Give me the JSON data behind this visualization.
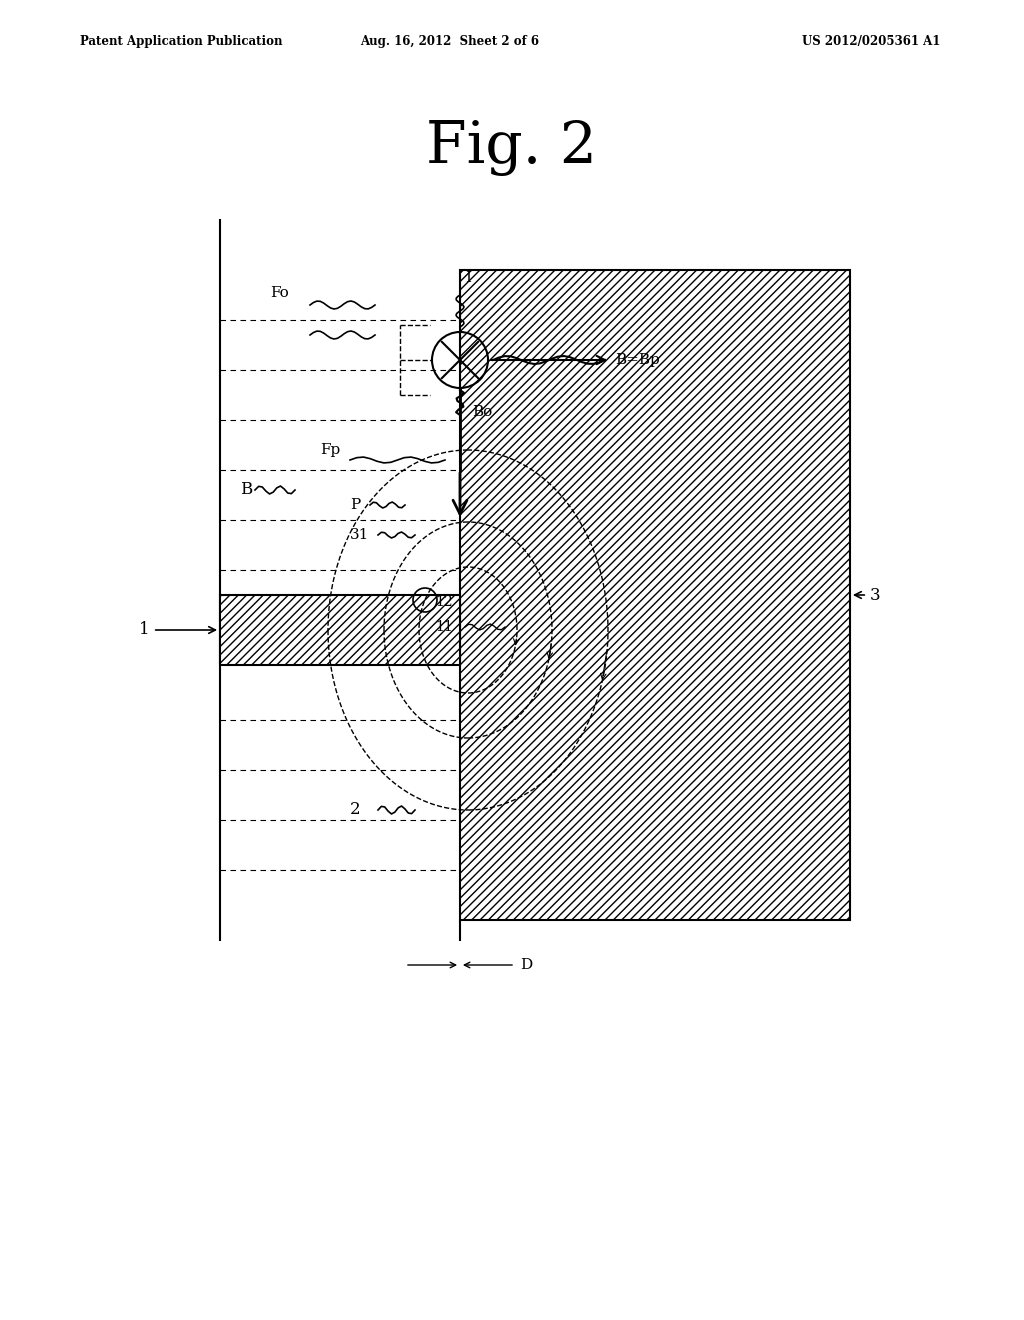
{
  "bg_color": "#ffffff",
  "header_left": "Patent Application Publication",
  "header_center": "Aug. 16, 2012  Sheet 2 of 6",
  "header_right": "US 2012/0205361 A1",
  "fig_title": "Fig. 2",
  "label_1": "1",
  "label_2": "2",
  "label_3": "3",
  "label_11": "11",
  "label_12": "12",
  "label_31": "31",
  "label_B": "B",
  "label_Fo": "Fo",
  "label_I": "I",
  "label_Bp": "B=Bp",
  "label_Bo": "Bo",
  "label_Fp": "Fp",
  "label_P": "P",
  "label_D": "D"
}
